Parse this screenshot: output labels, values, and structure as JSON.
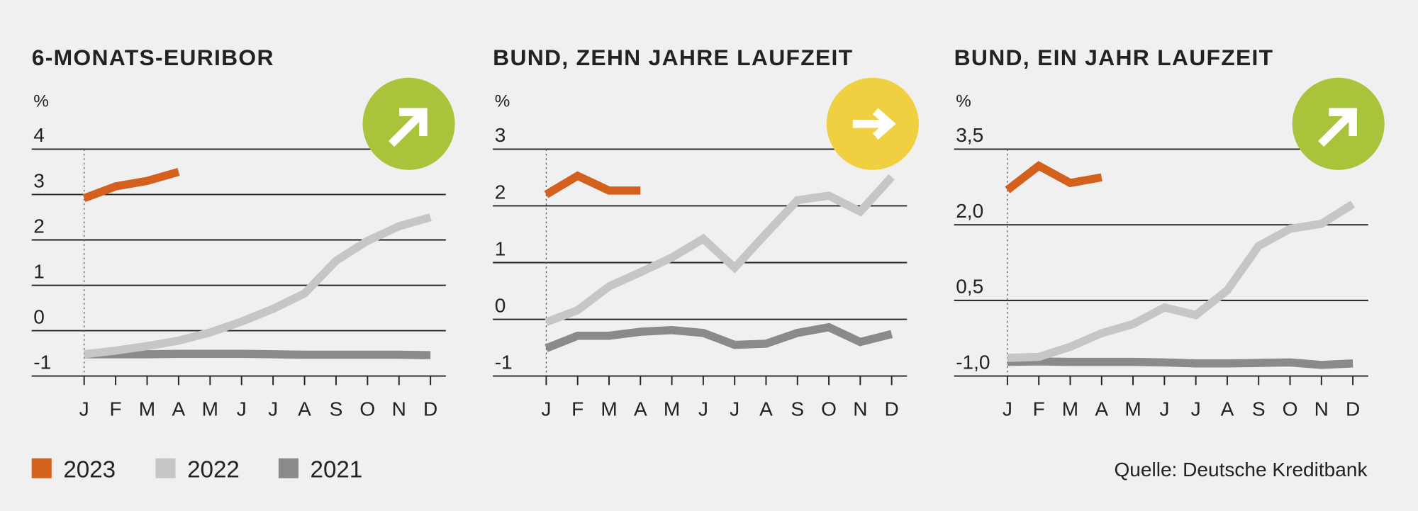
{
  "chart_data": [
    {
      "type": "line",
      "title": "6-MONATS-EURIBOR",
      "y_label": "%",
      "categories": [
        "J",
        "F",
        "M",
        "A",
        "M",
        "J",
        "J",
        "A",
        "S",
        "O",
        "N",
        "D"
      ],
      "ylim": [
        -1,
        4
      ],
      "yticks": [
        -1,
        0,
        1,
        2,
        3,
        4
      ],
      "series": [
        {
          "name": "2023",
          "color": "#d4601e",
          "values": [
            2.92,
            3.18,
            3.3,
            3.5,
            null,
            null,
            null,
            null,
            null,
            null,
            null,
            null
          ]
        },
        {
          "name": "2022",
          "color": "#c6c6c6",
          "values": [
            -0.52,
            -0.44,
            -0.34,
            -0.22,
            -0.04,
            0.2,
            0.48,
            0.82,
            1.54,
            1.98,
            2.3,
            2.5
          ]
        },
        {
          "name": "2021",
          "color": "#8a8a8a",
          "values": [
            -0.52,
            -0.52,
            -0.52,
            -0.51,
            -0.51,
            -0.51,
            -0.52,
            -0.53,
            -0.53,
            -0.53,
            -0.53,
            -0.54
          ]
        }
      ]
    },
    {
      "type": "line",
      "title": "BUND, ZEHN JAHRE LAUFZEIT",
      "y_label": "%",
      "categories": [
        "J",
        "F",
        "M",
        "A",
        "M",
        "J",
        "J",
        "A",
        "S",
        "O",
        "N",
        "D"
      ],
      "ylim": [
        -1,
        3
      ],
      "yticks": [
        -1,
        0,
        1,
        2,
        3
      ],
      "series": [
        {
          "name": "2023",
          "color": "#d4601e",
          "values": [
            2.2,
            2.53,
            2.27,
            2.27,
            null,
            null,
            null,
            null,
            null,
            null,
            null,
            null
          ]
        },
        {
          "name": "2022",
          "color": "#c6c6c6",
          "values": [
            -0.05,
            0.16,
            0.58,
            0.83,
            1.09,
            1.42,
            0.91,
            1.51,
            2.1,
            2.18,
            1.9,
            2.51
          ]
        },
        {
          "name": "2021",
          "color": "#8a8a8a",
          "values": [
            -0.51,
            -0.29,
            -0.29,
            -0.22,
            -0.19,
            -0.24,
            -0.45,
            -0.43,
            -0.24,
            -0.14,
            -0.4,
            -0.26
          ]
        }
      ]
    },
    {
      "type": "line",
      "title": "BUND, EIN JAHR LAUFZEIT",
      "y_label": "%",
      "categories": [
        "J",
        "F",
        "M",
        "A",
        "M",
        "J",
        "J",
        "A",
        "S",
        "O",
        "N",
        "D"
      ],
      "ylim": [
        -1,
        3.5
      ],
      "yticks": [
        {
          "value": -1,
          "label": "-1,0"
        },
        {
          "value": 0.5,
          "label": "0,5"
        },
        {
          "value": 2,
          "label": "2,0"
        },
        {
          "value": 3.5,
          "label": "3,5"
        }
      ],
      "series": [
        {
          "name": "2023",
          "color": "#d4601e",
          "values": [
            2.69,
            3.17,
            2.83,
            2.94,
            null,
            null,
            null,
            null,
            null,
            null,
            null,
            null
          ]
        },
        {
          "name": "2022",
          "color": "#c6c6c6",
          "values": [
            -0.64,
            -0.62,
            -0.42,
            -0.15,
            0.03,
            0.36,
            0.21,
            0.7,
            1.58,
            1.92,
            2.02,
            2.41
          ]
        },
        {
          "name": "2021",
          "color": "#8a8a8a",
          "values": [
            -0.72,
            -0.71,
            -0.72,
            -0.72,
            -0.72,
            -0.73,
            -0.75,
            -0.75,
            -0.74,
            -0.73,
            -0.78,
            -0.75
          ]
        }
      ]
    }
  ],
  "source": "Quelle: Deutsche Kreditbank"
}
